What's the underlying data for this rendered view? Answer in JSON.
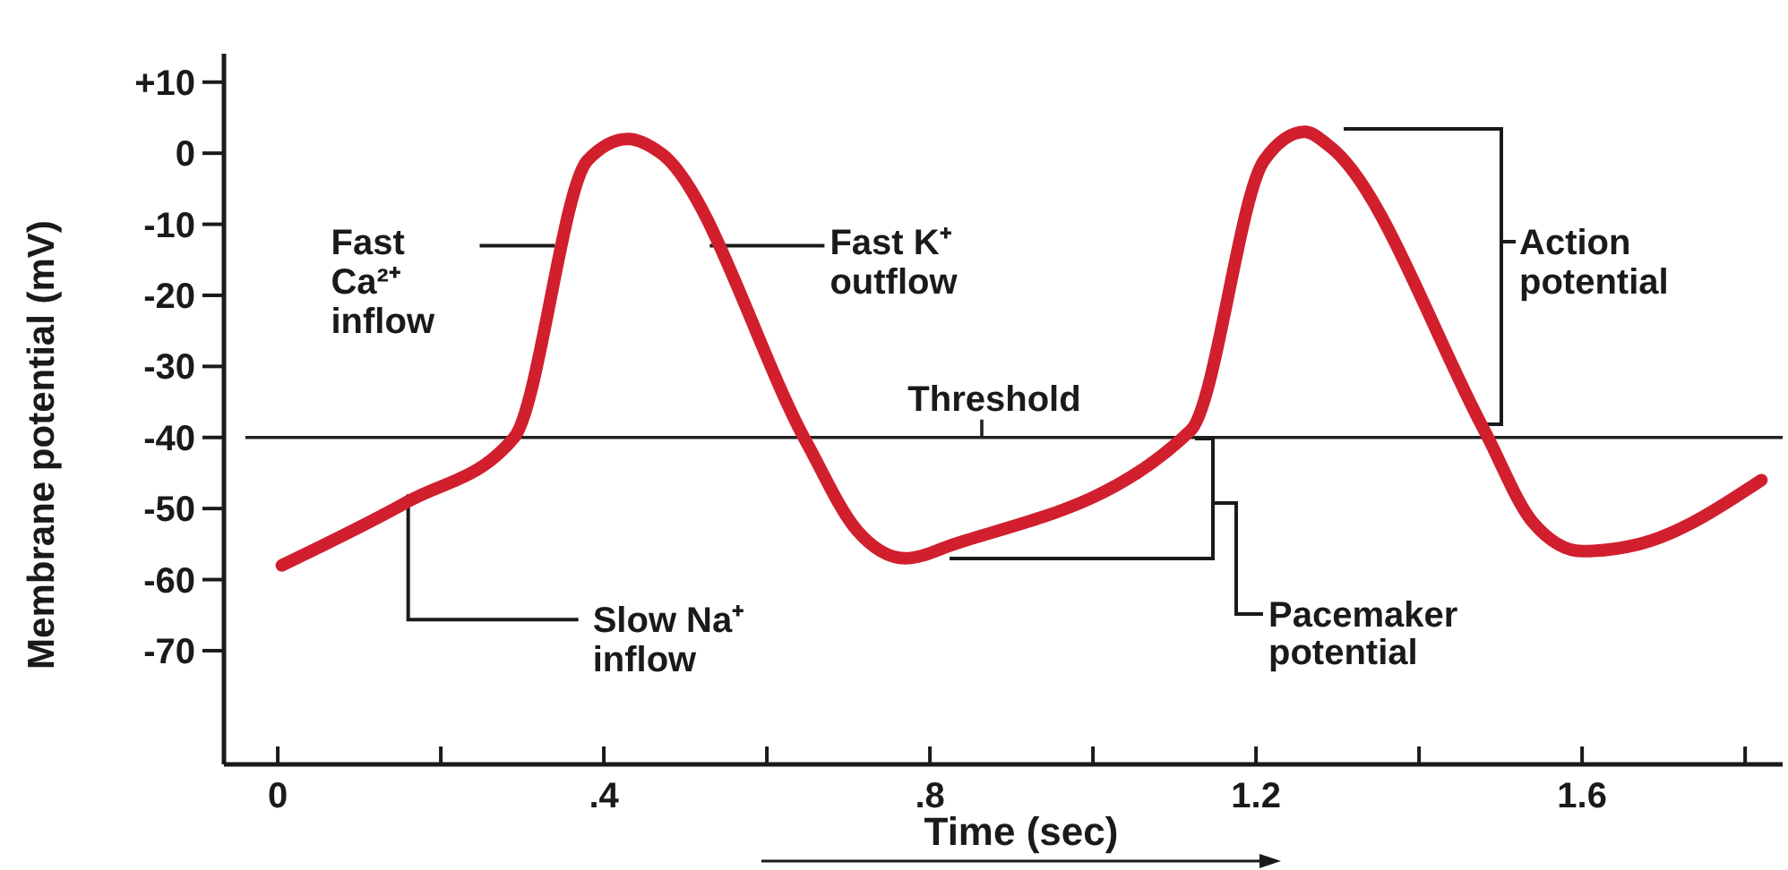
{
  "chart_data": {
    "type": "line",
    "xlabel": "Time (sec)",
    "ylabel": "Membrane potential (mV)",
    "xlim": [
      -0.066,
      1.846
    ],
    "ylim": [
      -86,
      14
    ],
    "xticks": [
      0,
      {
        "value": 0.2,
        "label": null
      },
      {
        "value": 0.4,
        "label": ".4"
      },
      {
        "value": 0.6,
        "label": null
      },
      {
        "value": 0.8,
        "label": ".8"
      },
      {
        "value": 1.0,
        "label": null
      },
      1.2,
      {
        "value": 1.4,
        "label": null
      },
      1.6,
      {
        "value": 1.8,
        "label": null
      }
    ],
    "yticks": [
      {
        "value": 10,
        "label": "+10"
      },
      0,
      -10,
      -20,
      -30,
      -40,
      -50,
      -60,
      -70
    ],
    "series": [
      {
        "color": "#d11f2e",
        "x": [
          0.005,
          0.16,
          0.29,
          0.38,
          0.43,
          0.47,
          0.65,
          0.71,
          0.77,
          0.83,
          1.12,
          1.21,
          1.26,
          1.29,
          1.48,
          1.54,
          1.6,
          1.67,
          1.82
        ],
        "values": [
          -58,
          -49,
          -40,
          -1,
          2,
          0,
          -41,
          -53,
          -57,
          -55,
          -39,
          -1,
          3,
          1,
          -39,
          -52,
          -56,
          -55,
          -46
        ]
      }
    ],
    "ref_lines": [
      {
        "axis": "y",
        "value": -40,
        "label": "Threshold",
        "color": "#222222"
      }
    ],
    "annotations": [
      {
        "text": "Fast\nCa²⁺\ninflow",
        "x": 0.34,
        "y": -13
      },
      {
        "text": "Fast K⁺\noutflow",
        "x": 0.53,
        "y": -13
      },
      {
        "text": "Slow Na⁺\ninflow",
        "x": 0.16,
        "y": -48
      },
      "Action\npotential",
      "Pacemaker\npotential"
    ],
    "grid": false
  }
}
